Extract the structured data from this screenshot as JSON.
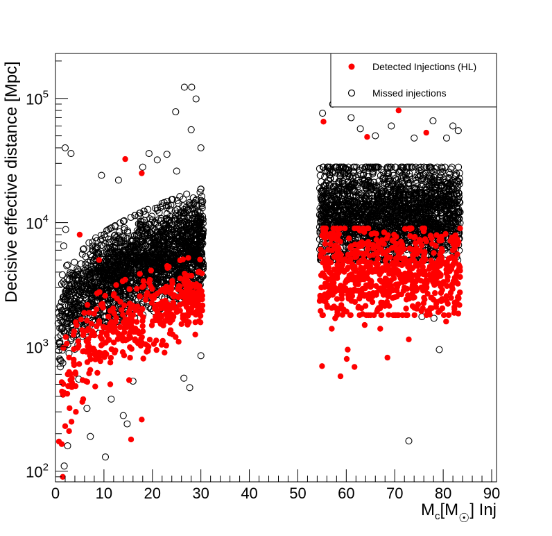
{
  "chart_data": {
    "type": "scatter",
    "title": "",
    "xlabel": {
      "main": "M",
      "sub1": "c",
      "mid": "[M",
      "sub2": "☉",
      "end": "] Inj"
    },
    "ylabel": "Decisive effective distance [Mpc]",
    "xlim": [
      0,
      91
    ],
    "ylim": [
      82,
      230000
    ],
    "yscale": "log",
    "grid": false,
    "legend_position": "top-right",
    "x_ticks": [
      "0",
      "10",
      "20",
      "30",
      "40",
      "50",
      "60",
      "70",
      "80",
      "90"
    ],
    "y_ticks": [
      {
        "base": "10",
        "exp": "2"
      },
      {
        "base": "10",
        "exp": "3"
      },
      {
        "base": "10",
        "exp": "4"
      },
      {
        "base": "10",
        "exp": "5"
      }
    ],
    "series": [
      {
        "name": "Detected Injections (HL)",
        "marker": "filled-circle",
        "color": "#ff0000",
        "points": [
          [
            1.5,
            90
          ],
          [
            1.3,
            165
          ],
          [
            2.0,
            230
          ],
          [
            2.8,
            210
          ],
          [
            3.3,
            250
          ],
          [
            4.2,
            300
          ],
          [
            5.6,
            540
          ],
          [
            8.2,
            480
          ],
          [
            11.3,
            500
          ],
          [
            14.4,
            32500
          ],
          [
            15.2,
            540
          ],
          [
            15.6,
            180
          ],
          [
            17.8,
            25000
          ],
          [
            17.8,
            260
          ],
          [
            19.2,
            1000
          ],
          [
            22.5,
            900
          ],
          [
            24.8,
            1200
          ],
          [
            26.3,
            1700
          ],
          [
            55.0,
            700
          ],
          [
            55.3,
            65000
          ],
          [
            57.7,
            1700
          ],
          [
            58.8,
            580
          ],
          [
            60.1,
            800
          ],
          [
            60.3,
            950
          ],
          [
            61.7,
            690
          ],
          [
            64.3,
            49000
          ],
          [
            67.2,
            1800
          ],
          [
            68.5,
            820
          ],
          [
            70.2,
            1800
          ],
          [
            70.8,
            80000
          ],
          [
            72.9,
            1150
          ],
          [
            76.5,
            53000
          ],
          [
            78.0,
            2400
          ],
          [
            83.0,
            2500
          ],
          [
            80.6,
            1600
          ],
          [
            63.8,
            1500
          ],
          [
            57.0,
            1400
          ],
          [
            61.0,
            3500
          ],
          [
            67.0,
            1400
          ],
          [
            72.0,
            3000
          ],
          [
            79.0,
            1900
          ],
          [
            82.5,
            3300
          ],
          [
            5.0,
            8000
          ],
          [
            9.0,
            5000
          ],
          [
            12.0,
            2600
          ],
          [
            16.0,
            1800
          ],
          [
            20.0,
            2500
          ],
          [
            27.0,
            3000
          ]
        ]
      },
      {
        "name": "Missed injections",
        "marker": "open-circle",
        "color": "#000000",
        "points": [
          [
            2.0,
            40000
          ],
          [
            3.2,
            36000
          ],
          [
            9.5,
            24000
          ],
          [
            10.3,
            130
          ],
          [
            7.2,
            190
          ],
          [
            14.0,
            280
          ],
          [
            14.8,
            240
          ],
          [
            16.0,
            530
          ],
          [
            19.3,
            36000
          ],
          [
            23.0,
            35500
          ],
          [
            24.8,
            78000
          ],
          [
            26.6,
            123000
          ],
          [
            28.1,
            123000
          ],
          [
            29.0,
            99000
          ],
          [
            28.0,
            56000
          ],
          [
            30.0,
            40000
          ],
          [
            26.5,
            560
          ],
          [
            27.7,
            470
          ],
          [
            30.0,
            850
          ],
          [
            1.8,
            110
          ],
          [
            2.5,
            160
          ],
          [
            72.9,
            175
          ],
          [
            79.2,
            950
          ],
          [
            57.2,
            90000
          ],
          [
            62.9,
            57000
          ],
          [
            69.3,
            60000
          ],
          [
            77.9,
            66000
          ],
          [
            80.7,
            48000
          ],
          [
            83.1,
            55000
          ],
          [
            75.6,
            1750
          ],
          [
            78.1,
            1700
          ],
          [
            55.1,
            76000
          ],
          [
            61.0,
            70000
          ],
          [
            66.0,
            50000
          ],
          [
            74.0,
            48000
          ],
          [
            82.0,
            60000
          ],
          [
            1.7,
            6500
          ],
          [
            2.1,
            8800
          ],
          [
            2.3,
            4500
          ],
          [
            13.0,
            22000
          ],
          [
            18.0,
            28000
          ],
          [
            21.0,
            32000
          ],
          [
            25.0,
            26000
          ],
          [
            4.8,
            550
          ],
          [
            6.5,
            320
          ],
          [
            11.5,
            380
          ]
        ]
      }
    ],
    "clouds": [
      {
        "series": "Missed injections",
        "x_range": [
          0.5,
          30.5
        ],
        "y_at_x_low": [
          600,
          2200
        ],
        "y_at_x_high": [
          3000,
          16000
        ],
        "density": "very dense"
      },
      {
        "series": "Detected Injections (HL)",
        "x_range": [
          0.5,
          30.5
        ],
        "y_at_x_low": [
          150,
          900
        ],
        "y_at_x_high": [
          1500,
          5000
        ],
        "density": "moderate"
      },
      {
        "series": "Missed injections",
        "x_range": [
          54.5,
          83.5
        ],
        "y_range": [
          5000,
          28000
        ],
        "density": "very dense"
      },
      {
        "series": "Detected Injections (HL)",
        "x_range": [
          54.5,
          83.5
        ],
        "y_range": [
          1800,
          9000
        ],
        "density": "dense"
      }
    ]
  }
}
